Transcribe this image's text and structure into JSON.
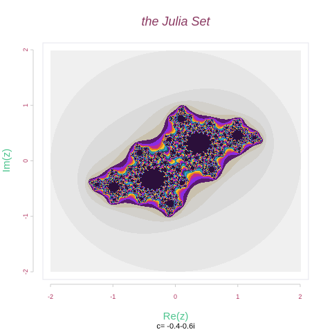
{
  "chart_data": {
    "type": "heatmap",
    "title": "the Julia Set",
    "xlabel": "Re(z)",
    "ylabel": "Im(z)",
    "caption": "c= -0.4-0.6i",
    "c": {
      "re": -0.4,
      "im": -0.6
    },
    "xlim": [
      -2,
      2
    ],
    "ylim": [
      -2,
      2
    ],
    "x_ticks": [
      -2,
      -1,
      0,
      1,
      2
    ],
    "y_ticks": [
      -2,
      -1,
      0,
      1,
      2
    ],
    "x_tick_labels": [
      "-2",
      "-1",
      "0",
      "1",
      "2"
    ],
    "y_tick_labels": [
      "-2",
      "-1",
      "0",
      "1",
      "2"
    ],
    "grid": false,
    "max_iterations": 60,
    "colors": {
      "plot_background": "#f0f0f0",
      "panel_border": "#e4e4ee",
      "outer_halo": [
        "#f0f0f0",
        "#e6e6e6",
        "#dbdbdb",
        "#d2d0cb",
        "#c9c1ae"
      ],
      "fractal_palette": [
        "#5a1a6e",
        "#8a2be2",
        "#c02c8e",
        "#e8801e",
        "#f4c430",
        "#2f8f9d",
        "#3a9ad9",
        "#1b6b6b"
      ],
      "interior": "#2b0f3a"
    }
  }
}
